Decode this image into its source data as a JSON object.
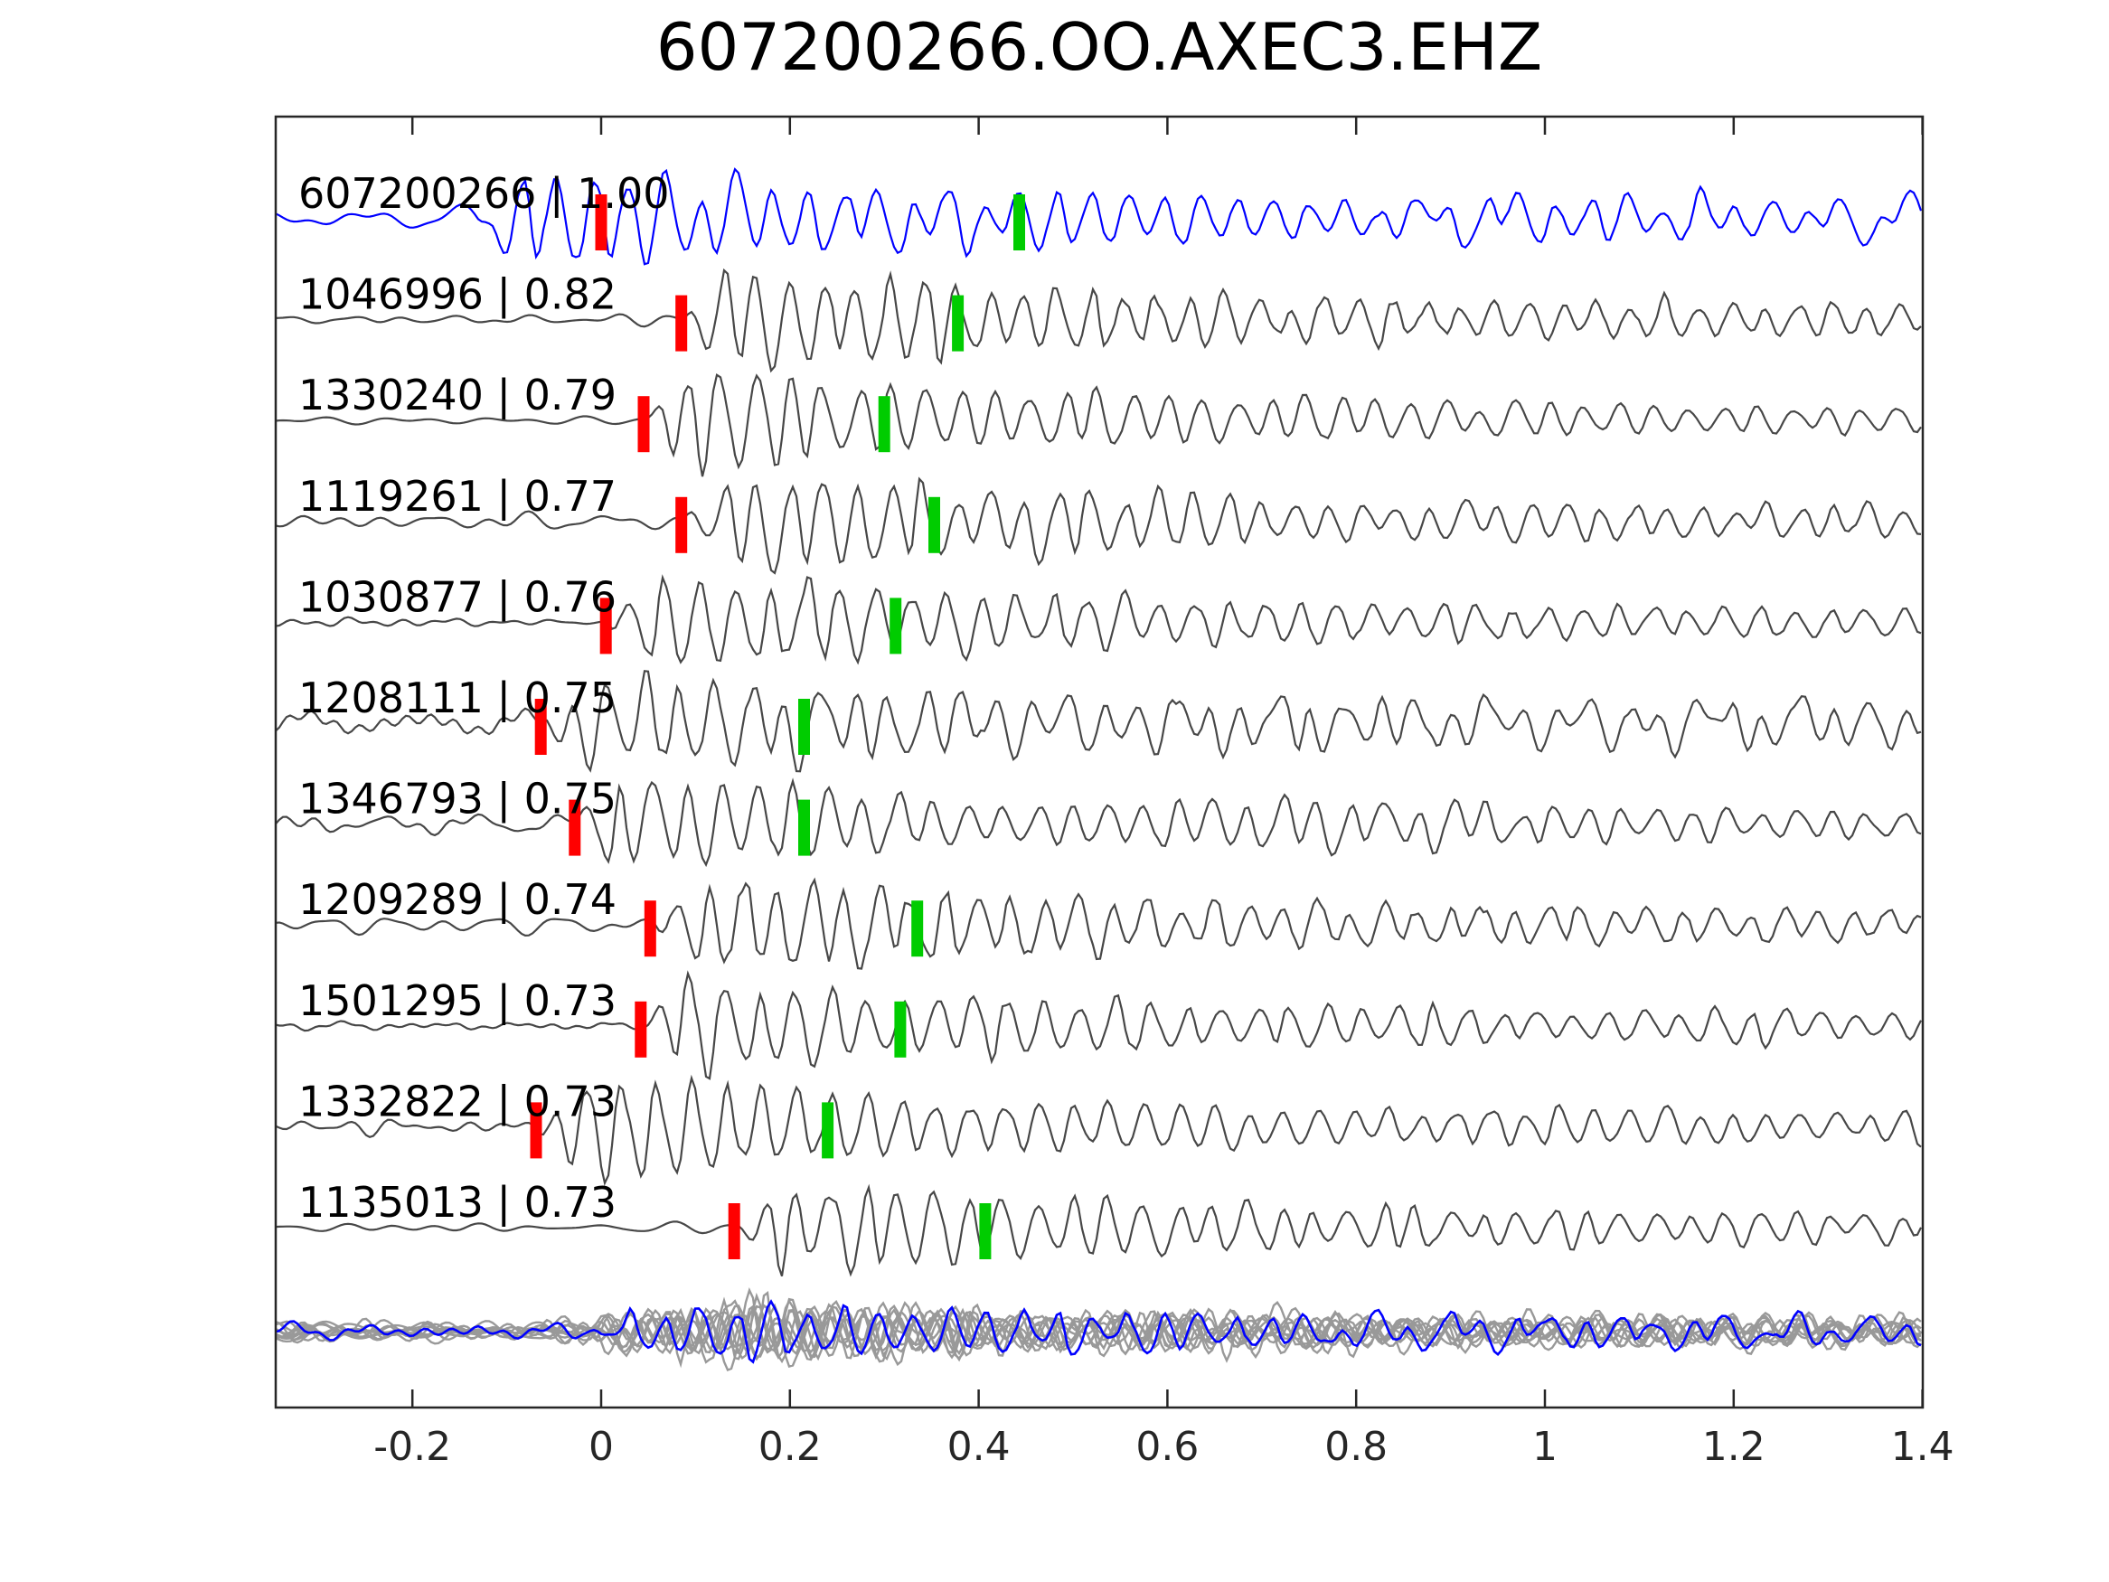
{
  "title": "607200266.OO.AXEC3.EHZ",
  "colors": {
    "reference_trace": "#0000ff",
    "match_trace": "#474747",
    "overlay_gray": "#999999",
    "pick_red": "#ff0000",
    "pick_green": "#00cc00",
    "axis": "#262626",
    "text": "#000000"
  },
  "chart_data": {
    "type": "line",
    "subtype": "seismogram-correlation-stack",
    "title": "607200266.OO.AXEC3.EHZ",
    "xlabel": "",
    "ylabel": "",
    "xlim": [
      -0.345,
      1.4
    ],
    "grid": false,
    "legend": "none",
    "xtick_values": [
      -0.2,
      0,
      0.2,
      0.4,
      0.6,
      0.8,
      1.0,
      1.2,
      1.4
    ],
    "xtick_labels": [
      "-0.2",
      "0",
      "0.2",
      "0.4",
      "0.6",
      "0.8",
      "1",
      "1.2",
      "1.4"
    ],
    "traces": [
      {
        "station_id": "607200266",
        "correlation": "1.00",
        "label": "607200266 | 1.00",
        "is_reference": true,
        "pick_red_t": 0.0,
        "pick_green_t": 0.443,
        "onset_t": -0.13,
        "pre_noise": 13,
        "burst_amp": 56,
        "coda_amp": 16,
        "wavelength": 40,
        "seed": 11
      },
      {
        "station_id": "1046996",
        "correlation": "0.82",
        "label": "1046996 | 0.82",
        "is_reference": false,
        "pick_red_t": 0.085,
        "pick_green_t": 0.378,
        "onset_t": 0.085,
        "pre_noise": 6,
        "burst_amp": 60,
        "coda_amp": 14,
        "wavelength": 38,
        "seed": 22
      },
      {
        "station_id": "1330240",
        "correlation": "0.79",
        "label": "1330240 | 0.79",
        "is_reference": false,
        "pick_red_t": 0.045,
        "pick_green_t": 0.3,
        "onset_t": 0.045,
        "pre_noise": 4,
        "burst_amp": 62,
        "coda_amp": 12,
        "wavelength": 39,
        "seed": 33
      },
      {
        "station_id": "1119261",
        "correlation": "0.77",
        "label": "1119261 | 0.77",
        "is_reference": false,
        "pick_red_t": 0.085,
        "pick_green_t": 0.353,
        "onset_t": 0.085,
        "pre_noise": 8,
        "burst_amp": 60,
        "coda_amp": 13,
        "wavelength": 38,
        "seed": 44
      },
      {
        "station_id": "1030877",
        "correlation": "0.76",
        "label": "1030877 | 0.76",
        "is_reference": false,
        "pick_red_t": 0.005,
        "pick_green_t": 0.312,
        "onset_t": 0.005,
        "pre_noise": 3.5,
        "burst_amp": 62,
        "coda_amp": 12,
        "wavelength": 40,
        "seed": 55
      },
      {
        "station_id": "1208111",
        "correlation": "0.75",
        "label": "1208111 | 0.75",
        "is_reference": false,
        "pick_red_t": -0.064,
        "pick_green_t": 0.215,
        "onset_t": -0.064,
        "pre_noise": 17,
        "burst_amp": 54,
        "coda_amp": 18,
        "wavelength": 40,
        "seed": 66
      },
      {
        "station_id": "1346793",
        "correlation": "0.75",
        "label": "1346793 | 0.75",
        "is_reference": false,
        "pick_red_t": -0.028,
        "pick_green_t": 0.215,
        "onset_t": -0.028,
        "pre_noise": 8,
        "burst_amp": 52,
        "coda_amp": 15,
        "wavelength": 39,
        "seed": 77
      },
      {
        "station_id": "1209289",
        "correlation": "0.74",
        "label": "1209289 | 0.74",
        "is_reference": false,
        "pick_red_t": 0.052,
        "pick_green_t": 0.335,
        "onset_t": 0.052,
        "pre_noise": 10,
        "burst_amp": 54,
        "coda_amp": 14,
        "wavelength": 38,
        "seed": 88
      },
      {
        "station_id": "1501295",
        "correlation": "0.73",
        "label": "1501295 | 0.73",
        "is_reference": false,
        "pick_red_t": 0.042,
        "pick_green_t": 0.317,
        "onset_t": 0.042,
        "pre_noise": 3.5,
        "burst_amp": 56,
        "coda_amp": 13,
        "wavelength": 40,
        "seed": 99
      },
      {
        "station_id": "1332822",
        "correlation": "0.73",
        "label": "1332822 | 0.73",
        "is_reference": false,
        "pick_red_t": -0.069,
        "pick_green_t": 0.24,
        "onset_t": -0.069,
        "pre_noise": 7,
        "burst_amp": 52,
        "coda_amp": 14,
        "wavelength": 39,
        "seed": 110
      },
      {
        "station_id": "1135013",
        "correlation": "0.73",
        "label": "1135013 | 0.73",
        "is_reference": false,
        "pick_red_t": 0.141,
        "pick_green_t": 0.407,
        "onset_t": 0.141,
        "pre_noise": 5,
        "burst_amp": 56,
        "coda_amp": 13,
        "wavelength": 39,
        "seed": 121
      }
    ],
    "overlay_stack": {
      "description": "all matched traces overplotted in gray with reference in blue",
      "gray_count": 10,
      "seed": 300,
      "onset_t": -0.06,
      "burst_amp": 42,
      "pre_noise": 9,
      "coda_amp": 11,
      "wavelength": 40,
      "ref_seed": 777,
      "ref_burst_amp": 46,
      "ref_onset_t": -0.05
    }
  }
}
